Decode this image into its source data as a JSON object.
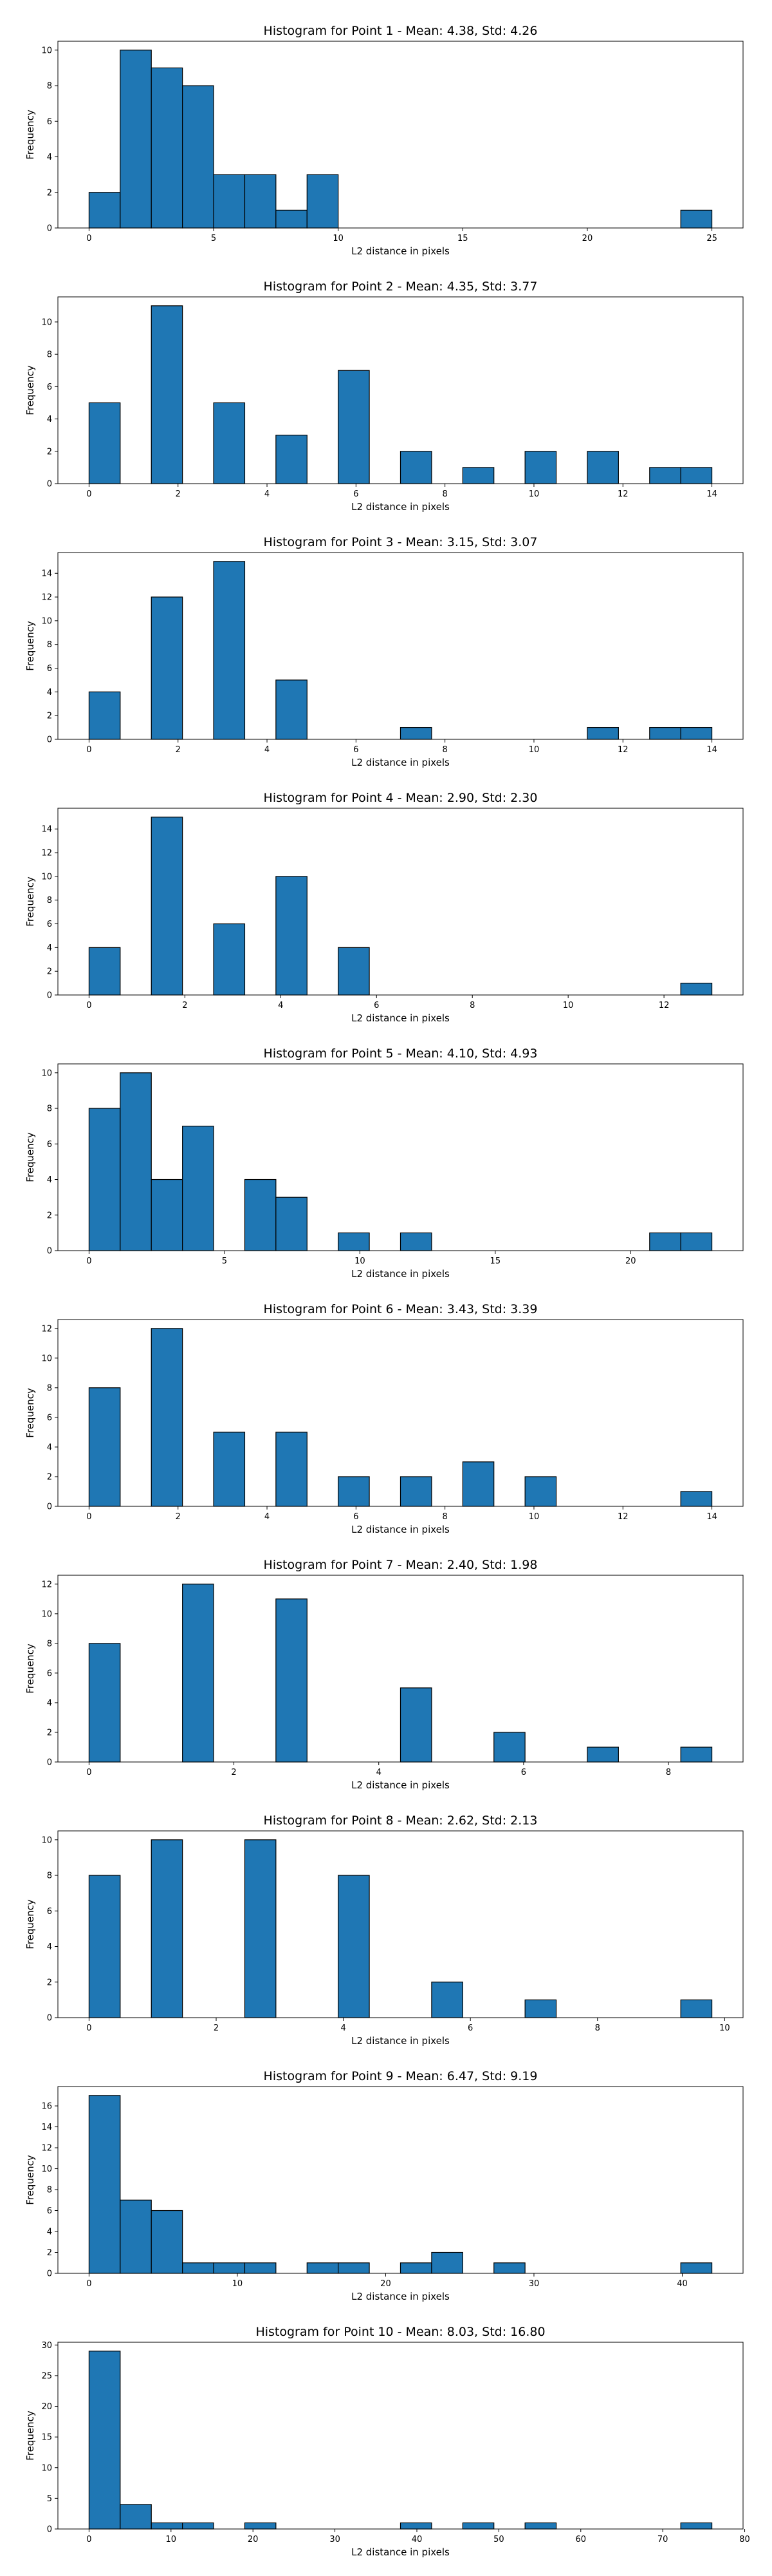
{
  "style": {
    "bar_color": "#1f77b4",
    "edge_color": "#000000",
    "background": "#ffffff",
    "grid": false
  },
  "chart_data": [
    {
      "type": "bar",
      "title": "Histogram for Point 1 - Mean: 4.38, Std: 4.26",
      "xlabel": "L2 distance in pixels",
      "ylabel": "Frequency",
      "xlim": [
        -1.25,
        26.25
      ],
      "ylim": [
        0,
        10.5
      ],
      "xticks": [
        0,
        5,
        10,
        15,
        20,
        25
      ],
      "yticks": [
        0,
        2,
        4,
        6,
        8,
        10
      ],
      "bins": [
        {
          "x0": 0.0,
          "x1": 1.25,
          "count": 2
        },
        {
          "x0": 1.25,
          "x1": 2.5,
          "count": 10
        },
        {
          "x0": 2.5,
          "x1": 3.75,
          "count": 9
        },
        {
          "x0": 3.75,
          "x1": 5.0,
          "count": 8
        },
        {
          "x0": 5.0,
          "x1": 6.25,
          "count": 3
        },
        {
          "x0": 6.25,
          "x1": 7.5,
          "count": 3
        },
        {
          "x0": 7.5,
          "x1": 8.75,
          "count": 1
        },
        {
          "x0": 8.75,
          "x1": 10.0,
          "count": 3
        },
        {
          "x0": 23.75,
          "x1": 25.0,
          "count": 1
        }
      ]
    },
    {
      "type": "bar",
      "title": "Histogram for Point 2 - Mean: 4.35, Std: 3.77",
      "xlabel": "L2 distance in pixels",
      "ylabel": "Frequency",
      "xlim": [
        -0.7,
        14.7
      ],
      "ylim": [
        0,
        11.55
      ],
      "xticks": [
        0,
        2,
        4,
        6,
        8,
        10,
        12,
        14
      ],
      "yticks": [
        0,
        2,
        4,
        6,
        8,
        10
      ],
      "bins": [
        {
          "x0": 0.0,
          "x1": 0.7,
          "count": 5
        },
        {
          "x0": 1.4,
          "x1": 2.1,
          "count": 11
        },
        {
          "x0": 2.8,
          "x1": 3.5,
          "count": 5
        },
        {
          "x0": 4.2,
          "x1": 4.9,
          "count": 3
        },
        {
          "x0": 5.6,
          "x1": 6.3,
          "count": 7
        },
        {
          "x0": 7.0,
          "x1": 7.7,
          "count": 2
        },
        {
          "x0": 8.4,
          "x1": 9.1,
          "count": 1
        },
        {
          "x0": 9.8,
          "x1": 10.5,
          "count": 2
        },
        {
          "x0": 11.2,
          "x1": 11.9,
          "count": 2
        },
        {
          "x0": 12.6,
          "x1": 13.3,
          "count": 1
        },
        {
          "x0": 13.3,
          "x1": 14.0,
          "count": 1
        }
      ]
    },
    {
      "type": "bar",
      "title": "Histogram for Point 3 - Mean: 3.15, Std: 3.07",
      "xlabel": "L2 distance in pixels",
      "ylabel": "Frequency",
      "xlim": [
        -0.7,
        14.7
      ],
      "ylim": [
        0,
        15.75
      ],
      "xticks": [
        0,
        2,
        4,
        6,
        8,
        10,
        12,
        14
      ],
      "yticks": [
        0,
        2,
        4,
        6,
        8,
        10,
        12,
        14
      ],
      "bins": [
        {
          "x0": 0.0,
          "x1": 0.7,
          "count": 4
        },
        {
          "x0": 1.4,
          "x1": 2.1,
          "count": 12
        },
        {
          "x0": 2.8,
          "x1": 3.5,
          "count": 15
        },
        {
          "x0": 4.2,
          "x1": 4.9,
          "count": 5
        },
        {
          "x0": 7.0,
          "x1": 7.7,
          "count": 1
        },
        {
          "x0": 11.2,
          "x1": 11.9,
          "count": 1
        },
        {
          "x0": 12.6,
          "x1": 13.3,
          "count": 1
        },
        {
          "x0": 13.3,
          "x1": 14.0,
          "count": 1
        }
      ]
    },
    {
      "type": "bar",
      "title": "Histogram for Point 4 - Mean: 2.90, Std: 2.30",
      "xlabel": "L2 distance in pixels",
      "ylabel": "Frequency",
      "xlim": [
        -0.65,
        13.65
      ],
      "ylim": [
        0,
        15.75
      ],
      "xticks": [
        0,
        2,
        4,
        6,
        8,
        10,
        12
      ],
      "yticks": [
        0,
        2,
        4,
        6,
        8,
        10,
        12,
        14
      ],
      "bins": [
        {
          "x0": 0.0,
          "x1": 0.65,
          "count": 4
        },
        {
          "x0": 1.3,
          "x1": 1.95,
          "count": 15
        },
        {
          "x0": 2.6,
          "x1": 3.25,
          "count": 6
        },
        {
          "x0": 3.9,
          "x1": 4.55,
          "count": 10
        },
        {
          "x0": 5.2,
          "x1": 5.85,
          "count": 4
        },
        {
          "x0": 12.35,
          "x1": 13.0,
          "count": 1
        }
      ]
    },
    {
      "type": "bar",
      "title": "Histogram for Point 5 - Mean: 4.10, Std: 4.93",
      "xlabel": "L2 distance in pixels",
      "ylabel": "Frequency",
      "xlim": [
        -1.15,
        24.15
      ],
      "ylim": [
        0,
        10.5
      ],
      "xticks": [
        0,
        5,
        10,
        15,
        20
      ],
      "yticks": [
        0,
        2,
        4,
        6,
        8,
        10
      ],
      "bins": [
        {
          "x0": 0.0,
          "x1": 1.15,
          "count": 8
        },
        {
          "x0": 1.15,
          "x1": 2.3,
          "count": 10
        },
        {
          "x0": 2.3,
          "x1": 3.45,
          "count": 4
        },
        {
          "x0": 3.45,
          "x1": 4.6,
          "count": 7
        },
        {
          "x0": 5.75,
          "x1": 6.9,
          "count": 4
        },
        {
          "x0": 6.9,
          "x1": 8.05,
          "count": 3
        },
        {
          "x0": 9.2,
          "x1": 10.35,
          "count": 1
        },
        {
          "x0": 11.5,
          "x1": 12.65,
          "count": 1
        },
        {
          "x0": 20.7,
          "x1": 21.85,
          "count": 1
        },
        {
          "x0": 21.85,
          "x1": 23.0,
          "count": 1
        }
      ]
    },
    {
      "type": "bar",
      "title": "Histogram for Point 6 - Mean: 3.43, Std: 3.39",
      "xlabel": "L2 distance in pixels",
      "ylabel": "Frequency",
      "xlim": [
        -0.7,
        14.7
      ],
      "ylim": [
        0,
        12.6
      ],
      "xticks": [
        0,
        2,
        4,
        6,
        8,
        10,
        12,
        14
      ],
      "yticks": [
        0,
        2,
        4,
        6,
        8,
        10,
        12
      ],
      "bins": [
        {
          "x0": 0.0,
          "x1": 0.7,
          "count": 8
        },
        {
          "x0": 1.4,
          "x1": 2.1,
          "count": 12
        },
        {
          "x0": 2.8,
          "x1": 3.5,
          "count": 5
        },
        {
          "x0": 4.2,
          "x1": 4.9,
          "count": 5
        },
        {
          "x0": 5.6,
          "x1": 6.3,
          "count": 2
        },
        {
          "x0": 7.0,
          "x1": 7.7,
          "count": 2
        },
        {
          "x0": 8.4,
          "x1": 9.1,
          "count": 3
        },
        {
          "x0": 9.8,
          "x1": 10.5,
          "count": 2
        },
        {
          "x0": 13.3,
          "x1": 14.0,
          "count": 1
        }
      ]
    },
    {
      "type": "bar",
      "title": "Histogram for Point 7 - Mean: 2.40, Std: 1.98",
      "xlabel": "L2 distance in pixels",
      "ylabel": "Frequency",
      "xlim": [
        -0.43,
        9.03
      ],
      "ylim": [
        0,
        12.6
      ],
      "xticks": [
        0,
        2,
        4,
        6,
        8
      ],
      "yticks": [
        0,
        2,
        4,
        6,
        8,
        10,
        12
      ],
      "bins": [
        {
          "x0": 0.0,
          "x1": 0.43,
          "count": 8
        },
        {
          "x0": 1.29,
          "x1": 1.72,
          "count": 12
        },
        {
          "x0": 2.58,
          "x1": 3.01,
          "count": 11
        },
        {
          "x0": 4.3,
          "x1": 4.73,
          "count": 5
        },
        {
          "x0": 5.59,
          "x1": 6.02,
          "count": 2
        },
        {
          "x0": 6.88,
          "x1": 7.31,
          "count": 1
        },
        {
          "x0": 8.17,
          "x1": 8.6,
          "count": 1
        }
      ]
    },
    {
      "type": "bar",
      "title": "Histogram for Point 8 - Mean: 2.62, Std: 2.13",
      "xlabel": "L2 distance in pixels",
      "ylabel": "Frequency",
      "xlim": [
        -0.49,
        10.29
      ],
      "ylim": [
        0,
        10.5
      ],
      "xticks": [
        0,
        2,
        4,
        6,
        8,
        10
      ],
      "yticks": [
        0,
        2,
        4,
        6,
        8,
        10
      ],
      "bins": [
        {
          "x0": 0.0,
          "x1": 0.49,
          "count": 8
        },
        {
          "x0": 0.98,
          "x1": 1.47,
          "count": 10
        },
        {
          "x0": 2.45,
          "x1": 2.94,
          "count": 10
        },
        {
          "x0": 3.92,
          "x1": 4.41,
          "count": 8
        },
        {
          "x0": 5.39,
          "x1": 5.88,
          "count": 2
        },
        {
          "x0": 6.86,
          "x1": 7.35,
          "count": 1
        },
        {
          "x0": 9.31,
          "x1": 9.8,
          "count": 1
        }
      ]
    },
    {
      "type": "bar",
      "title": "Histogram for Point 9 - Mean: 6.47, Std: 9.19",
      "xlabel": "L2 distance in pixels",
      "ylabel": "Frequency",
      "xlim": [
        -2.1,
        44.1
      ],
      "ylim": [
        0,
        17.85
      ],
      "xticks": [
        0,
        10,
        20,
        30,
        40
      ],
      "yticks": [
        0,
        2,
        4,
        6,
        8,
        10,
        12,
        14,
        16
      ],
      "bins": [
        {
          "x0": 0.0,
          "x1": 2.1,
          "count": 17
        },
        {
          "x0": 2.1,
          "x1": 4.2,
          "count": 7
        },
        {
          "x0": 4.2,
          "x1": 6.3,
          "count": 6
        },
        {
          "x0": 6.3,
          "x1": 8.4,
          "count": 1
        },
        {
          "x0": 8.4,
          "x1": 10.5,
          "count": 1
        },
        {
          "x0": 10.5,
          "x1": 12.6,
          "count": 1
        },
        {
          "x0": 14.7,
          "x1": 16.8,
          "count": 1
        },
        {
          "x0": 16.8,
          "x1": 18.9,
          "count": 1
        },
        {
          "x0": 21.0,
          "x1": 23.1,
          "count": 1
        },
        {
          "x0": 23.1,
          "x1": 25.2,
          "count": 2
        },
        {
          "x0": 27.3,
          "x1": 29.4,
          "count": 1
        },
        {
          "x0": 39.9,
          "x1": 42.0,
          "count": 1
        }
      ]
    },
    {
      "type": "bar",
      "title": "Histogram for Point 10 - Mean: 8.03, Std: 16.80",
      "xlabel": "L2 distance in pixels",
      "ylabel": "Frequency",
      "xlim": [
        -3.8,
        79.8
      ],
      "ylim": [
        0,
        30.45
      ],
      "xticks": [
        0,
        10,
        20,
        30,
        40,
        50,
        60,
        70,
        80
      ],
      "yticks": [
        0,
        5,
        10,
        15,
        20,
        25,
        30
      ],
      "bins": [
        {
          "x0": 0.0,
          "x1": 3.8,
          "count": 29
        },
        {
          "x0": 3.8,
          "x1": 7.6,
          "count": 4
        },
        {
          "x0": 7.6,
          "x1": 11.4,
          "count": 1
        },
        {
          "x0": 11.4,
          "x1": 15.2,
          "count": 1
        },
        {
          "x0": 19.0,
          "x1": 22.8,
          "count": 1
        },
        {
          "x0": 38.0,
          "x1": 41.8,
          "count": 1
        },
        {
          "x0": 45.6,
          "x1": 49.4,
          "count": 1
        },
        {
          "x0": 53.2,
          "x1": 57.0,
          "count": 1
        },
        {
          "x0": 72.2,
          "x1": 76.0,
          "count": 1
        }
      ]
    }
  ]
}
